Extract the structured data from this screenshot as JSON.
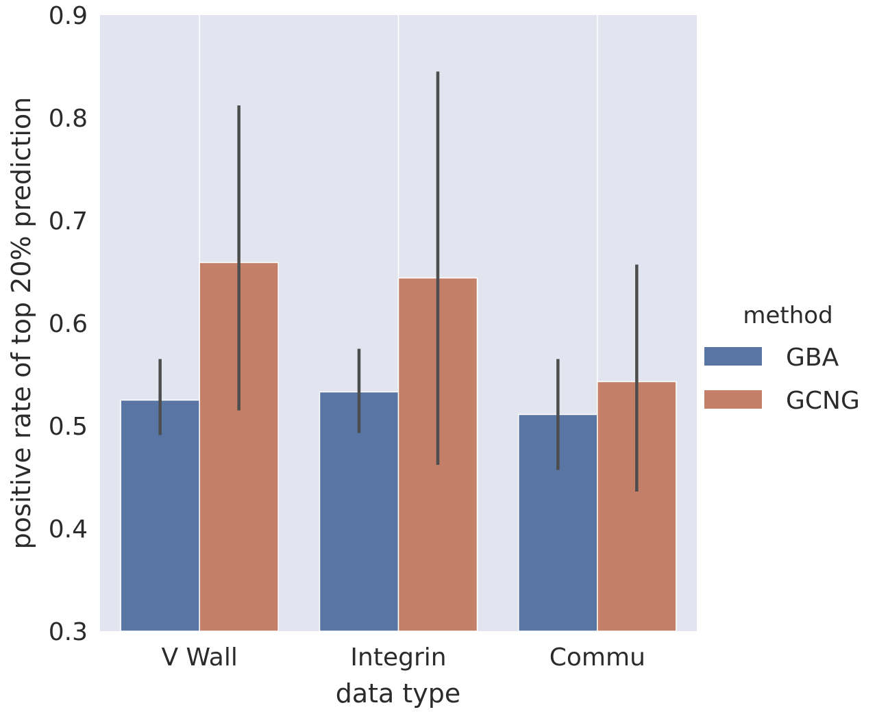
{
  "chart_data": {
    "type": "bar",
    "xlabel": "data type",
    "ylabel": "positive rate of top 20% prediction",
    "categories": [
      "V Wall",
      "Integrin",
      "Commu"
    ],
    "ylim": [
      0.3,
      0.9
    ],
    "yticks": [
      "0.3",
      "0.4",
      "0.5",
      "0.6",
      "0.7",
      "0.8",
      "0.9"
    ],
    "grid": "vertical lines between groups",
    "legend": {
      "title": "method",
      "position": "right"
    },
    "series": [
      {
        "name": "GBA",
        "color": "#5975a4",
        "values": [
          0.525,
          0.533,
          0.511
        ],
        "error_low": [
          0.491,
          0.493,
          0.457
        ],
        "error_high": [
          0.565,
          0.575,
          0.565
        ]
      },
      {
        "name": "GCNG",
        "color": "#c47f69",
        "values": [
          0.659,
          0.644,
          0.543
        ],
        "error_low": [
          0.515,
          0.462,
          0.436
        ],
        "error_high": [
          0.812,
          0.845,
          0.657
        ]
      }
    ]
  }
}
